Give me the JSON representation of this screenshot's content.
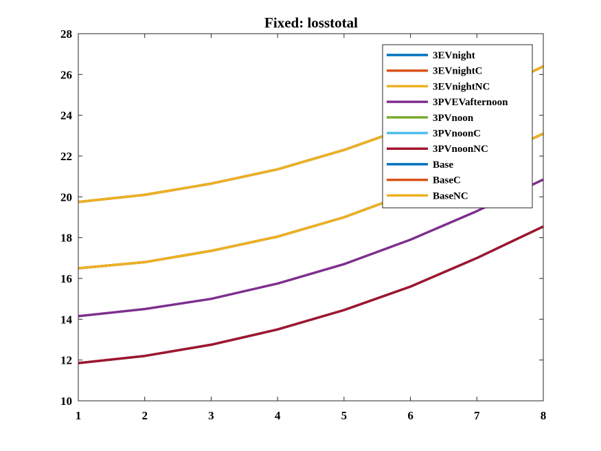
{
  "chart_data": {
    "type": "line",
    "title": "Fixed: losstotal",
    "xlabel": "",
    "ylabel": "",
    "x": [
      1,
      2,
      3,
      4,
      5,
      6,
      7,
      8
    ],
    "xlim": [
      1,
      8
    ],
    "ylim": [
      10,
      28
    ],
    "xticks": [
      "1",
      "2",
      "3",
      "4",
      "5",
      "6",
      "7",
      "8"
    ],
    "yticks": [
      "10",
      "12",
      "14",
      "16",
      "18",
      "20",
      "22",
      "24",
      "26",
      "28"
    ],
    "grid": false,
    "legend_position": "top-right",
    "series": [
      {
        "name": "3EVnight",
        "color": "#0072BD",
        "values": [
          16.5,
          16.8,
          17.35,
          18.05,
          19.0,
          20.2,
          21.6,
          23.1
        ]
      },
      {
        "name": "3EVnightC",
        "color": "#D95319",
        "values": [
          16.5,
          16.8,
          17.35,
          18.05,
          19.0,
          20.2,
          21.6,
          23.1
        ]
      },
      {
        "name": "3EVnightNC",
        "color": "#EDB120",
        "values": [
          16.5,
          16.8,
          17.35,
          18.05,
          19.0,
          20.2,
          21.6,
          23.1
        ]
      },
      {
        "name": "3PVEVafternoon",
        "color": "#7E2F8E",
        "values": [
          14.15,
          14.5,
          15.0,
          15.75,
          16.7,
          17.9,
          19.3,
          20.85
        ]
      },
      {
        "name": "3PVnoon",
        "color": "#77AC30",
        "values": [
          11.85,
          12.2,
          12.75,
          13.5,
          14.45,
          15.6,
          17.0,
          18.55
        ]
      },
      {
        "name": "3PVnoonC",
        "color": "#4DBEEE",
        "values": [
          11.85,
          12.2,
          12.75,
          13.5,
          14.45,
          15.6,
          17.0,
          18.55
        ]
      },
      {
        "name": "3PVnoonNC",
        "color": "#A2142F",
        "values": [
          11.85,
          12.2,
          12.75,
          13.5,
          14.45,
          15.6,
          17.0,
          18.55
        ]
      },
      {
        "name": "Base",
        "color": "#0072BD",
        "values": [
          19.75,
          20.1,
          20.65,
          21.35,
          22.3,
          23.45,
          24.85,
          26.4
        ]
      },
      {
        "name": "BaseC",
        "color": "#D95319",
        "values": [
          19.75,
          20.1,
          20.65,
          21.35,
          22.3,
          23.45,
          24.85,
          26.4
        ]
      },
      {
        "name": "BaseNC",
        "color": "#EDB120",
        "values": [
          19.75,
          20.1,
          20.65,
          21.35,
          22.3,
          23.45,
          24.85,
          26.4
        ]
      }
    ]
  }
}
